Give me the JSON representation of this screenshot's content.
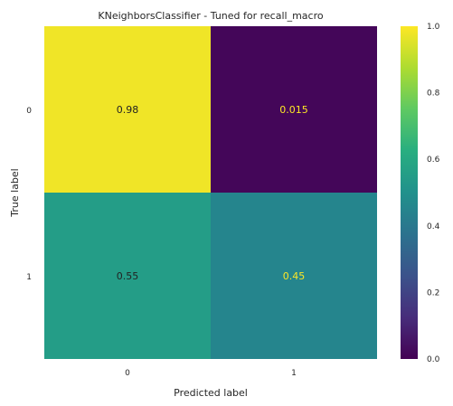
{
  "chart_data": {
    "type": "heatmap",
    "title": "KNeighborsClassifier - Tuned for recall_macro",
    "xlabel": "Predicted label",
    "ylabel": "True label",
    "x_categories": [
      "0",
      "1"
    ],
    "y_categories": [
      "0",
      "1"
    ],
    "matrix": [
      [
        0.98,
        0.015
      ],
      [
        0.55,
        0.45
      ]
    ],
    "cell_labels": [
      [
        "0.98",
        "0.015"
      ],
      [
        "0.55",
        "0.45"
      ]
    ],
    "colormap": "viridis",
    "vmin": 0.0,
    "vmax": 1.0,
    "colorbar_ticks": [
      "0.0",
      "0.2",
      "0.4",
      "0.6",
      "0.8",
      "1.0"
    ],
    "grid": false,
    "colors": {
      "text_on_light": "#222222",
      "text_on_dark": "#fde725",
      "axis_text": "#262626"
    }
  }
}
